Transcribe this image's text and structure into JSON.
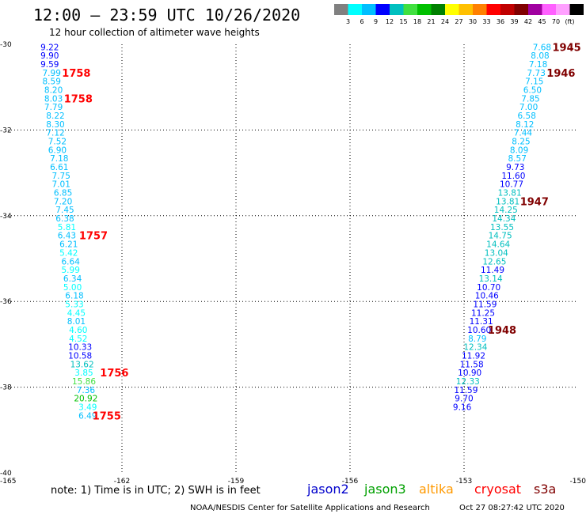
{
  "header": {
    "title": "12:00 — 23:59 UTC 10/26/2020",
    "subtitle": "12 hour collection of altimeter wave heights"
  },
  "legend": {
    "colors": [
      "#808080",
      "#00ffff",
      "#00bfff",
      "#0000ff",
      "#00bfbf",
      "#40e040",
      "#00c000",
      "#008000",
      "#ffff00",
      "#ffc000",
      "#ff8000",
      "#ff0000",
      "#c00000",
      "#800000",
      "#a000a0",
      "#ff60ff",
      "#ffa0ff",
      "#000000"
    ],
    "labels": [
      "3",
      "6",
      "9",
      "12",
      "15",
      "18",
      "21",
      "24",
      "27",
      "30",
      "33",
      "36",
      "39",
      "42",
      "45",
      "70",
      "(ft)"
    ]
  },
  "notes": {
    "text": "note:  1) Time is in UTC; 2) SWH is in feet",
    "footer_left": "NOAA/NESDIS Center for Satellite Applications and Research",
    "footer_right": "Oct 27 08:27:42 UTC 2020"
  },
  "satellites": [
    {
      "name": "jason2",
      "color": "#0000cc"
    },
    {
      "name": "jason3",
      "color": "#00a000"
    },
    {
      "name": "altika",
      "color": "#ff9900"
    },
    {
      "name": "cryosat",
      "color": "#ff0000"
    },
    {
      "name": "s3a",
      "color": "#800000"
    }
  ],
  "chart_data": {
    "type": "scatter",
    "title": "12:00 — 23:59 UTC 10/26/2020",
    "subtitle": "12 hour collection of altimeter wave heights",
    "xlim": [
      -165,
      -150
    ],
    "ylim": [
      -40,
      -30
    ],
    "x_ticks": [
      "-165",
      "-162",
      "-159",
      "-156",
      "-153",
      "-150"
    ],
    "y_ticks": [
      "-30",
      "-32",
      "-34",
      "-36",
      "-38",
      "-40"
    ],
    "grid": true,
    "series": [
      {
        "name": "cryosat",
        "color_key": "cryosat",
        "points": [
          {
            "x": -163.9,
            "y": -30.06,
            "v": "9.22"
          },
          {
            "x": -163.9,
            "y": -30.26,
            "v": "9.90"
          },
          {
            "x": -163.9,
            "y": -30.46,
            "v": "9.59"
          },
          {
            "x": -163.85,
            "y": -30.66,
            "v": "7.99"
          },
          {
            "x": -163.85,
            "y": -30.86,
            "v": "8.59"
          },
          {
            "x": -163.8,
            "y": -31.06,
            "v": "8.20"
          },
          {
            "x": -163.8,
            "y": -31.26,
            "v": "8.03"
          },
          {
            "x": -163.8,
            "y": -31.46,
            "v": "7.79"
          },
          {
            "x": -163.75,
            "y": -31.66,
            "v": "8.22"
          },
          {
            "x": -163.75,
            "y": -31.86,
            "v": "8.30"
          },
          {
            "x": -163.75,
            "y": -32.06,
            "v": "7.12"
          },
          {
            "x": -163.7,
            "y": -32.26,
            "v": "7.52"
          },
          {
            "x": -163.7,
            "y": -32.46,
            "v": "6.90"
          },
          {
            "x": -163.65,
            "y": -32.66,
            "v": "7.18"
          },
          {
            "x": -163.65,
            "y": -32.86,
            "v": "6.61"
          },
          {
            "x": -163.6,
            "y": -33.06,
            "v": "7.75"
          },
          {
            "x": -163.6,
            "y": -33.26,
            "v": "7.01"
          },
          {
            "x": -163.55,
            "y": -33.46,
            "v": "6.85"
          },
          {
            "x": -163.55,
            "y": -33.66,
            "v": "7.20"
          },
          {
            "x": -163.5,
            "y": -33.86,
            "v": "7.45"
          },
          {
            "x": -163.5,
            "y": -34.06,
            "v": "6.38"
          },
          {
            "x": -163.45,
            "y": -34.26,
            "v": "5.81"
          },
          {
            "x": -163.45,
            "y": -34.46,
            "v": "6.43"
          },
          {
            "x": -163.4,
            "y": -34.66,
            "v": "6.21"
          },
          {
            "x": -163.4,
            "y": -34.86,
            "v": "5.42"
          },
          {
            "x": -163.35,
            "y": -35.06,
            "v": "6.64"
          },
          {
            "x": -163.35,
            "y": -35.26,
            "v": "5.99"
          },
          {
            "x": -163.3,
            "y": -35.46,
            "v": "6.34"
          },
          {
            "x": -163.3,
            "y": -35.66,
            "v": "5.00"
          },
          {
            "x": -163.25,
            "y": -35.86,
            "v": "6.18"
          },
          {
            "x": -163.25,
            "y": -36.06,
            "v": "5.33"
          },
          {
            "x": -163.2,
            "y": -36.26,
            "v": "4.45"
          },
          {
            "x": -163.2,
            "y": -36.46,
            "v": "8.01"
          },
          {
            "x": -163.15,
            "y": -36.66,
            "v": "4.60"
          },
          {
            "x": -163.15,
            "y": -36.86,
            "v": "4.52"
          },
          {
            "x": -163.1,
            "y": -37.06,
            "v": "10.33"
          },
          {
            "x": -163.1,
            "y": -37.26,
            "v": "10.58"
          },
          {
            "x": -163.05,
            "y": -37.46,
            "v": "13.62"
          },
          {
            "x": -163.0,
            "y": -37.66,
            "v": "3.85"
          },
          {
            "x": -163.0,
            "y": -37.86,
            "v": "15.86"
          },
          {
            "x": -162.95,
            "y": -38.06,
            "v": "7.36"
          },
          {
            "x": -162.95,
            "y": -38.26,
            "v": "20.92"
          },
          {
            "x": -162.9,
            "y": -38.46,
            "v": "3.49"
          },
          {
            "x": -162.9,
            "y": -38.66,
            "v": "6.49"
          }
        ]
      },
      {
        "name": "s3a",
        "color_key": "s3a",
        "points": [
          {
            "x": -150.95,
            "y": -30.06,
            "v": "7.68"
          },
          {
            "x": -151.0,
            "y": -30.26,
            "v": "8.08"
          },
          {
            "x": -151.05,
            "y": -30.46,
            "v": "7.18"
          },
          {
            "x": -151.1,
            "y": -30.66,
            "v": "7.73"
          },
          {
            "x": -151.15,
            "y": -30.86,
            "v": "7.15"
          },
          {
            "x": -151.2,
            "y": -31.06,
            "v": "6.50"
          },
          {
            "x": -151.25,
            "y": -31.26,
            "v": "7.85"
          },
          {
            "x": -151.3,
            "y": -31.46,
            "v": "7.00"
          },
          {
            "x": -151.35,
            "y": -31.66,
            "v": "6.58"
          },
          {
            "x": -151.4,
            "y": -31.86,
            "v": "8.12"
          },
          {
            "x": -151.45,
            "y": -32.06,
            "v": "7.44"
          },
          {
            "x": -151.5,
            "y": -32.26,
            "v": "8.25"
          },
          {
            "x": -151.55,
            "y": -32.46,
            "v": "8.09"
          },
          {
            "x": -151.6,
            "y": -32.66,
            "v": "8.57"
          },
          {
            "x": -151.65,
            "y": -32.86,
            "v": "9.73"
          },
          {
            "x": -151.7,
            "y": -33.06,
            "v": "11.60"
          },
          {
            "x": -151.75,
            "y": -33.26,
            "v": "10.77"
          },
          {
            "x": -151.8,
            "y": -33.46,
            "v": "13.81"
          },
          {
            "x": -151.85,
            "y": -33.66,
            "v": "13.81"
          },
          {
            "x": -151.9,
            "y": -33.86,
            "v": "14.25"
          },
          {
            "x": -151.95,
            "y": -34.06,
            "v": "14.34"
          },
          {
            "x": -152.0,
            "y": -34.26,
            "v": "13.55"
          },
          {
            "x": -152.05,
            "y": -34.46,
            "v": "14.75"
          },
          {
            "x": -152.1,
            "y": -34.66,
            "v": "14.64"
          },
          {
            "x": -152.15,
            "y": -34.86,
            "v": "13.04"
          },
          {
            "x": -152.2,
            "y": -35.06,
            "v": "12.65"
          },
          {
            "x": -152.25,
            "y": -35.26,
            "v": "11.49"
          },
          {
            "x": -152.3,
            "y": -35.46,
            "v": "13.14"
          },
          {
            "x": -152.35,
            "y": -35.66,
            "v": "10.70"
          },
          {
            "x": -152.4,
            "y": -35.86,
            "v": "10.46"
          },
          {
            "x": -152.45,
            "y": -36.06,
            "v": "11.59"
          },
          {
            "x": -152.5,
            "y": -36.26,
            "v": "11.25"
          },
          {
            "x": -152.55,
            "y": -36.46,
            "v": "11.31"
          },
          {
            "x": -152.6,
            "y": -36.66,
            "v": "10.60"
          },
          {
            "x": -152.65,
            "y": -36.86,
            "v": "8.79"
          },
          {
            "x": -152.7,
            "y": -37.06,
            "v": "12.34"
          },
          {
            "x": -152.75,
            "y": -37.26,
            "v": "11.92"
          },
          {
            "x": -152.8,
            "y": -37.46,
            "v": "11.58"
          },
          {
            "x": -152.85,
            "y": -37.66,
            "v": "10.90"
          },
          {
            "x": -152.9,
            "y": -37.86,
            "v": "12.33"
          },
          {
            "x": -152.95,
            "y": -38.06,
            "v": "11.59"
          },
          {
            "x": -153.0,
            "y": -38.26,
            "v": "9.70"
          },
          {
            "x": -153.05,
            "y": -38.46,
            "v": "9.16"
          }
        ]
      }
    ],
    "time_labels": [
      {
        "x": -163.2,
        "y": -30.66,
        "label": "1758",
        "color_key": "cryosat"
      },
      {
        "x": -163.15,
        "y": -31.26,
        "label": "1758",
        "color_key": "cryosat"
      },
      {
        "x": -162.75,
        "y": -34.46,
        "label": "1757",
        "color_key": "cryosat"
      },
      {
        "x": -162.2,
        "y": -37.66,
        "label": "1756",
        "color_key": "cryosat"
      },
      {
        "x": -162.4,
        "y": -38.66,
        "label": "1755",
        "color_key": "cryosat"
      },
      {
        "x": -150.3,
        "y": -30.06,
        "label": "1945",
        "color_key": "s3a"
      },
      {
        "x": -150.45,
        "y": -30.66,
        "label": "1946",
        "color_key": "s3a"
      },
      {
        "x": -151.15,
        "y": -33.66,
        "label": "1947",
        "color_key": "s3a"
      },
      {
        "x": -152.0,
        "y": -36.66,
        "label": "1948",
        "color_key": "s3a"
      }
    ]
  }
}
